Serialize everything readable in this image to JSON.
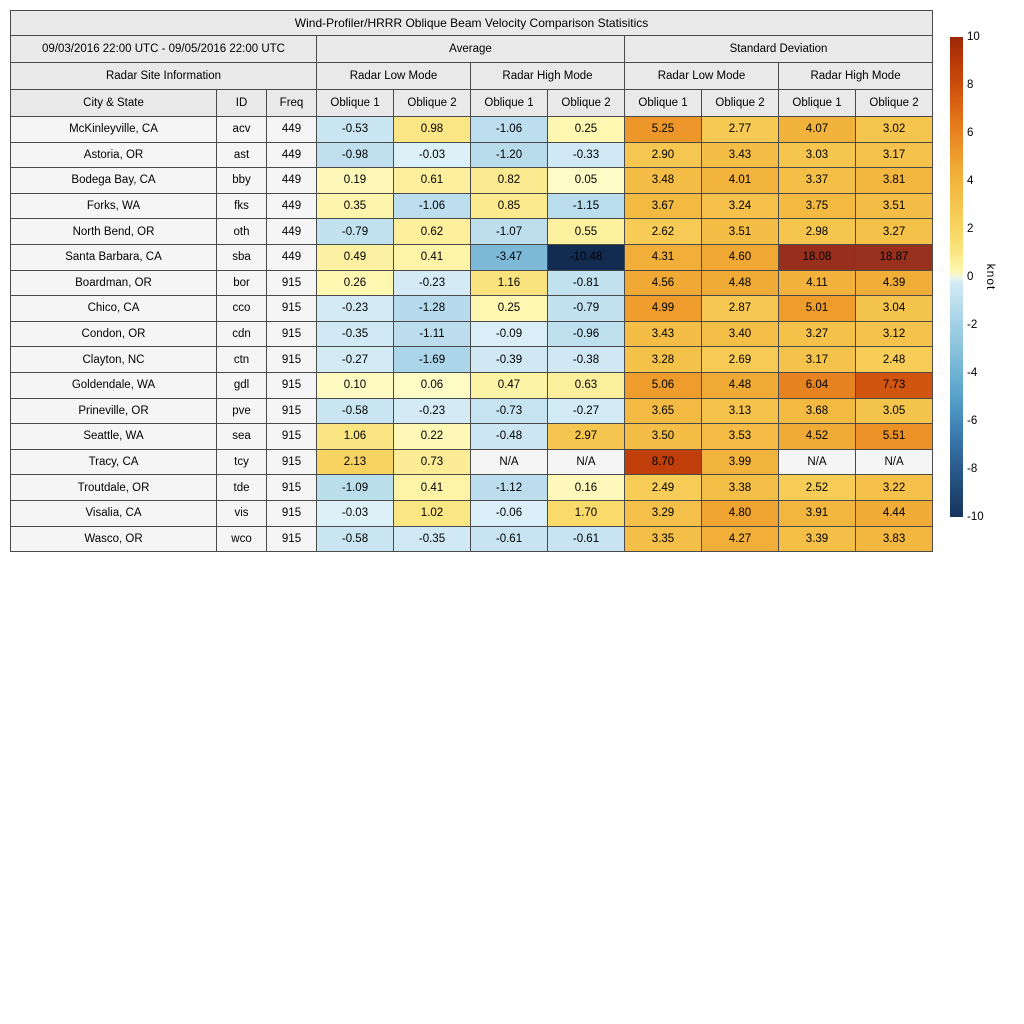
{
  "chart_data": {
    "type": "table",
    "title": "Wind-Profiler/HRRR Oblique Beam Velocity Comparison Statisitics",
    "date_range": "09/03/2016 22:00 UTC - 09/05/2016 22:00 UTC",
    "group_headers": [
      "Average",
      "Standard Deviation"
    ],
    "site_info_header": "Radar Site Information",
    "mode_headers": [
      "Radar Low Mode",
      "Radar High Mode",
      "Radar Low Mode",
      "Radar High Mode"
    ],
    "columns": [
      "City & State",
      "ID",
      "Freq",
      "Oblique 1",
      "Oblique 2",
      "Oblique 1",
      "Oblique 2",
      "Oblique 1",
      "Oblique 2",
      "Oblique 1",
      "Oblique 2"
    ],
    "rows": [
      {
        "city": "McKinleyville, CA",
        "id": "acv",
        "freq": "449",
        "values": [
          "-0.53",
          "0.98",
          "-1.06",
          "0.25",
          "5.25",
          "2.77",
          "4.07",
          "3.02"
        ]
      },
      {
        "city": "Astoria, OR",
        "id": "ast",
        "freq": "449",
        "values": [
          "-0.98",
          "-0.03",
          "-1.20",
          "-0.33",
          "2.90",
          "3.43",
          "3.03",
          "3.17"
        ]
      },
      {
        "city": "Bodega Bay, CA",
        "id": "bby",
        "freq": "449",
        "values": [
          "0.19",
          "0.61",
          "0.82",
          "0.05",
          "3.48",
          "4.01",
          "3.37",
          "3.81"
        ]
      },
      {
        "city": "Forks, WA",
        "id": "fks",
        "freq": "449",
        "values": [
          "0.35",
          "-1.06",
          "0.85",
          "-1.15",
          "3.67",
          "3.24",
          "3.75",
          "3.51"
        ]
      },
      {
        "city": "North Bend, OR",
        "id": "oth",
        "freq": "449",
        "values": [
          "-0.79",
          "0.62",
          "-1.07",
          "0.55",
          "2.62",
          "3.51",
          "2.98",
          "3.27"
        ]
      },
      {
        "city": "Santa Barbara, CA",
        "id": "sba",
        "freq": "449",
        "values": [
          "0.49",
          "0.41",
          "-3.47",
          "-10.48",
          "4.31",
          "4.60",
          "18.08",
          "18.87"
        ]
      },
      {
        "city": "Boardman, OR",
        "id": "bor",
        "freq": "915",
        "values": [
          "0.26",
          "-0.23",
          "1.16",
          "-0.81",
          "4.56",
          "4.48",
          "4.11",
          "4.39"
        ]
      },
      {
        "city": "Chico, CA",
        "id": "cco",
        "freq": "915",
        "values": [
          "-0.23",
          "-1.28",
          "0.25",
          "-0.79",
          "4.99",
          "2.87",
          "5.01",
          "3.04"
        ]
      },
      {
        "city": "Condon, OR",
        "id": "cdn",
        "freq": "915",
        "values": [
          "-0.35",
          "-1.11",
          "-0.09",
          "-0.96",
          "3.43",
          "3.40",
          "3.27",
          "3.12"
        ]
      },
      {
        "city": "Clayton, NC",
        "id": "ctn",
        "freq": "915",
        "values": [
          "-0.27",
          "-1.69",
          "-0.39",
          "-0.38",
          "3.28",
          "2.69",
          "3.17",
          "2.48"
        ]
      },
      {
        "city": "Goldendale, WA",
        "id": "gdl",
        "freq": "915",
        "values": [
          "0.10",
          "0.06",
          "0.47",
          "0.63",
          "5.06",
          "4.48",
          "6.04",
          "7.73"
        ]
      },
      {
        "city": "Prineville, OR",
        "id": "pve",
        "freq": "915",
        "values": [
          "-0.58",
          "-0.23",
          "-0.73",
          "-0.27",
          "3.65",
          "3.13",
          "3.68",
          "3.05"
        ]
      },
      {
        "city": "Seattle, WA",
        "id": "sea",
        "freq": "915",
        "values": [
          "1.06",
          "0.22",
          "-0.48",
          "2.97",
          "3.50",
          "3.53",
          "4.52",
          "5.51"
        ]
      },
      {
        "city": "Tracy, CA",
        "id": "tcy",
        "freq": "915",
        "values": [
          "2.13",
          "0.73",
          "N/A",
          "N/A",
          "8.70",
          "3.99",
          "N/A",
          "N/A"
        ]
      },
      {
        "city": "Troutdale, OR",
        "id": "tde",
        "freq": "915",
        "values": [
          "-1.09",
          "0.41",
          "-1.12",
          "0.16",
          "2.49",
          "3.38",
          "2.52",
          "3.22"
        ]
      },
      {
        "city": "Visalia, CA",
        "id": "vis",
        "freq": "915",
        "values": [
          "-0.03",
          "1.02",
          "-0.06",
          "1.70",
          "3.29",
          "4.80",
          "3.91",
          "4.44"
        ]
      },
      {
        "city": "Wasco, OR",
        "id": "wco",
        "freq": "915",
        "values": [
          "-0.58",
          "-0.35",
          "-0.61",
          "-0.61",
          "3.35",
          "4.27",
          "3.39",
          "3.83"
        ]
      }
    ],
    "colorbar": {
      "label": "knot",
      "min": -10,
      "max": 10,
      "ticks": [
        10,
        8,
        6,
        4,
        2,
        0,
        -2,
        -4,
        -6,
        -8,
        -10
      ]
    },
    "colors": {
      "header_bg": "#e9e9e9",
      "label_cell_bg": "#f5f5f5",
      "na_cell_bg": "#f5f5f5",
      "border": "#4a4a4a",
      "text": "#000000",
      "colormap_stops": [
        [
          -10.5,
          "#122c50"
        ],
        [
          -10,
          "#16355e"
        ],
        [
          -9,
          "#1f4672"
        ],
        [
          -8,
          "#2a5a8c"
        ],
        [
          -7,
          "#3571a6"
        ],
        [
          -6,
          "#4489b9"
        ],
        [
          -5,
          "#58a0c8"
        ],
        [
          -4,
          "#6fb2d4"
        ],
        [
          -3,
          "#8ac2dc"
        ],
        [
          -2,
          "#a2d0e5"
        ],
        [
          -1.5,
          "#b0d8ea"
        ],
        [
          -1,
          "#bedfee"
        ],
        [
          -0.5,
          "#cbe6f3"
        ],
        [
          -0.25,
          "#d3ebf5"
        ],
        [
          -0.02,
          "#dcf0f8"
        ],
        [
          0.02,
          "#fffcc9"
        ],
        [
          0.25,
          "#fdf7b2"
        ],
        [
          0.5,
          "#fdf2a3"
        ],
        [
          1,
          "#fbe685"
        ],
        [
          1.5,
          "#f9dd70"
        ],
        [
          2,
          "#f8d564"
        ],
        [
          2.5,
          "#f7cd58"
        ],
        [
          3,
          "#f5c54e"
        ],
        [
          3.5,
          "#f4bd45"
        ],
        [
          4,
          "#f2b43d"
        ],
        [
          4.5,
          "#f0ab36"
        ],
        [
          5,
          "#ee9d2d"
        ],
        [
          5.5,
          "#eb9126"
        ],
        [
          6,
          "#e78320"
        ],
        [
          6.5,
          "#e2761a"
        ],
        [
          7,
          "#dc6715"
        ],
        [
          7.5,
          "#d55b10"
        ],
        [
          8,
          "#cc4d0c"
        ],
        [
          9,
          "#b93807"
        ],
        [
          10,
          "#9c2807"
        ],
        [
          12,
          "#942a14"
        ],
        [
          20,
          "#993120"
        ]
      ]
    }
  }
}
